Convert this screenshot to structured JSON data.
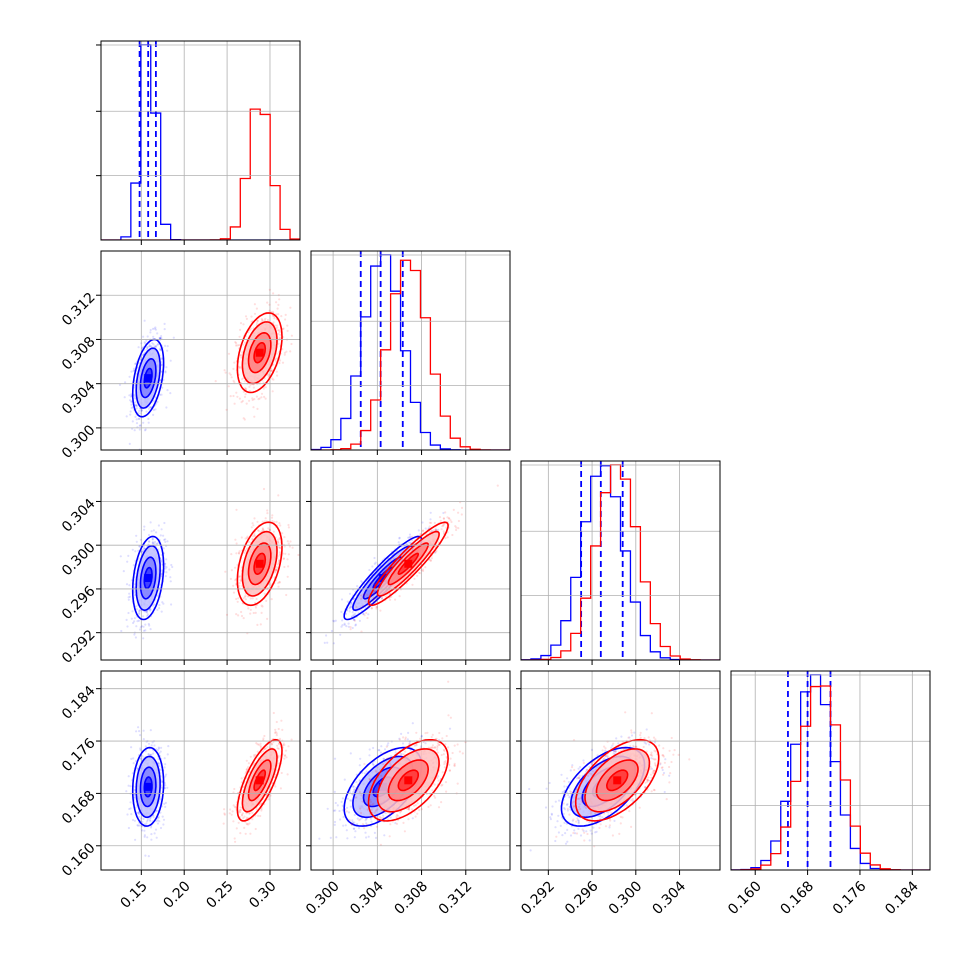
{
  "chart_data": {
    "type": "corner",
    "grid": true,
    "parameters": [
      {
        "range": [
          0.103,
          0.335
        ],
        "ticks": [
          0.15,
          0.2,
          0.25,
          0.3
        ],
        "tick_labels": [
          "0.15",
          "0.20",
          "0.25",
          "0.30"
        ]
      },
      {
        "range": [
          0.298,
          0.316
        ],
        "ticks": [
          0.3,
          0.304,
          0.308,
          0.312
        ],
        "tick_labels": [
          "0.300",
          "0.304",
          "0.308",
          "0.312"
        ]
      },
      {
        "range": [
          0.2895,
          0.3077
        ],
        "ticks": [
          0.292,
          0.296,
          0.3,
          0.304
        ],
        "tick_labels": [
          "0.292",
          "0.296",
          "0.300",
          "0.304"
        ]
      },
      {
        "range": [
          0.1563,
          0.1867
        ],
        "ticks": [
          0.16,
          0.168,
          0.176,
          0.184
        ],
        "tick_labels": [
          "0.160",
          "0.168",
          "0.176",
          "0.184"
        ]
      }
    ],
    "series": [
      {
        "color": "#0000ff",
        "mean": [
          0.158,
          0.3045,
          0.297,
          0.169
        ],
        "std": [
          0.009,
          0.00175,
          0.0019,
          0.003
        ],
        "corr": [
          [
            1,
            0.4,
            0.3,
            0.1
          ],
          [
            0.4,
            1,
            0.92,
            0.55
          ],
          [
            0.3,
            0.92,
            1,
            0.55
          ],
          [
            0.1,
            0.55,
            0.55,
            1
          ]
        ],
        "quantiles": [
          [
            0.148,
            0.158,
            0.167
          ],
          [
            0.3025,
            0.3043,
            0.3063
          ],
          [
            0.295,
            0.2968,
            0.2988
          ],
          [
            0.165,
            0.168,
            0.1715
          ]
        ]
      },
      {
        "color": "#ff0000",
        "mean": [
          0.288,
          0.3068,
          0.2983,
          0.17
        ],
        "std": [
          0.013,
          0.0018,
          0.0019,
          0.0031
        ],
        "corr": [
          [
            1,
            0.4,
            0.4,
            0.72
          ],
          [
            0.4,
            1,
            0.92,
            0.55
          ],
          [
            0.4,
            0.92,
            1,
            0.55
          ],
          [
            0.72,
            0.55,
            0.55,
            1
          ]
        ],
        "quantiles": []
      }
    ]
  }
}
